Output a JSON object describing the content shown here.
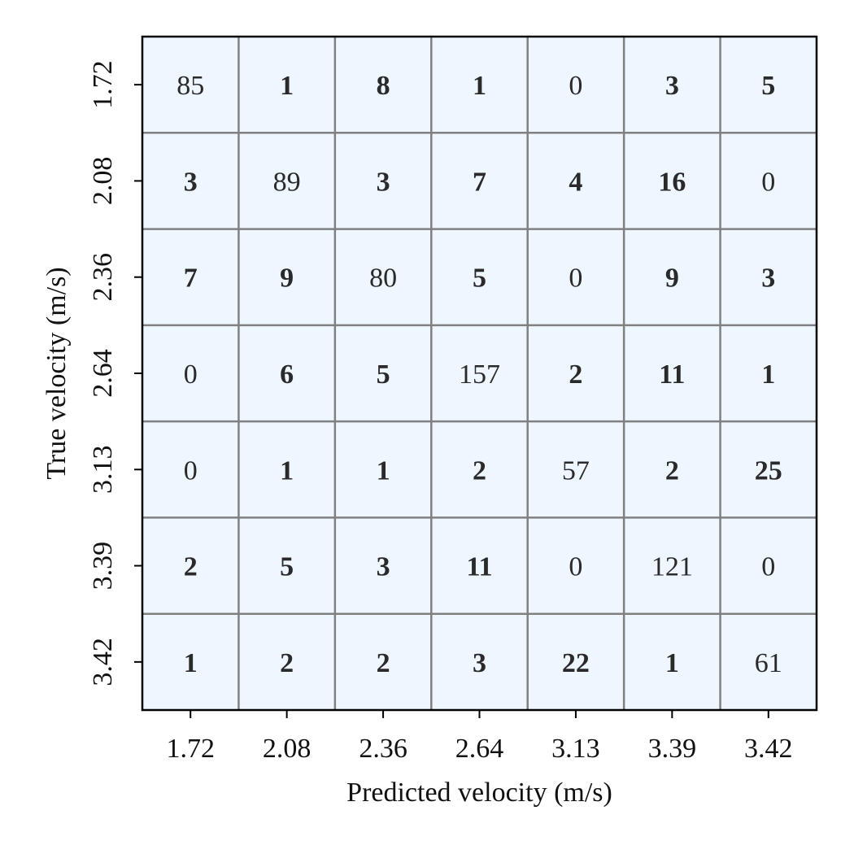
{
  "chart_data": {
    "type": "heatmap",
    "title": "",
    "xlabel": "Predicted velocity (m/s)",
    "ylabel": "True velocity (m/s)",
    "x_categories": [
      "1.72",
      "2.08",
      "2.36",
      "2.64",
      "3.13",
      "3.39",
      "3.42"
    ],
    "y_categories": [
      "1.72",
      "2.08",
      "2.36",
      "2.64",
      "3.13",
      "3.39",
      "3.42"
    ],
    "values": [
      [
        85,
        1,
        8,
        1,
        0,
        3,
        5
      ],
      [
        3,
        89,
        3,
        7,
        4,
        16,
        0
      ],
      [
        7,
        9,
        80,
        5,
        0,
        9,
        3
      ],
      [
        0,
        6,
        5,
        157,
        2,
        11,
        1
      ],
      [
        0,
        1,
        1,
        2,
        57,
        2,
        25
      ],
      [
        2,
        5,
        3,
        11,
        0,
        121,
        0
      ],
      [
        1,
        2,
        2,
        3,
        22,
        1,
        61
      ]
    ],
    "bold_nonzero_off_diagonal": true,
    "grid": true,
    "colors": {
      "cell_fill": "#eef6ff",
      "cell_border": "#808080",
      "frame": "#000000",
      "text": "#2a2a2a"
    }
  }
}
